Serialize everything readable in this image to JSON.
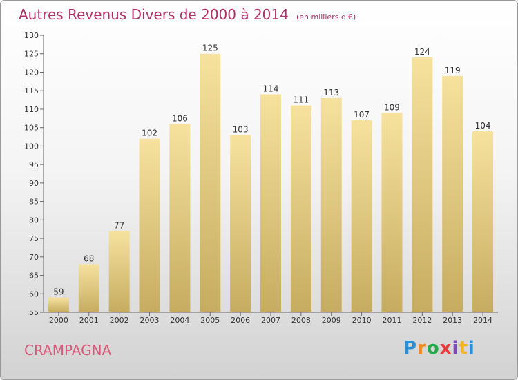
{
  "title": "Autres Revenus Divers de 2000 à 2014",
  "unit": "(en milliers d'€)",
  "commune": "CRAMPAGNA",
  "logo": {
    "letters": [
      "P",
      "r",
      "o",
      "x",
      "i",
      "t",
      "i"
    ],
    "colors": [
      "#2a8fd4",
      "#f08a1c",
      "#2aa94a",
      "#e83a3a",
      "#7a4bb0",
      "#f0b61c",
      "#2a8fd4"
    ]
  },
  "colors": {
    "title": "#b0306a",
    "commune": "#d85a7a",
    "bar_light": "#f6e29e",
    "bar_dark": "#c6ac60"
  },
  "chart_data": {
    "type": "bar",
    "categories": [
      "2000",
      "2001",
      "2002",
      "2003",
      "2004",
      "2005",
      "2006",
      "2007",
      "2008",
      "2009",
      "2010",
      "2011",
      "2012",
      "2013",
      "2014"
    ],
    "values": [
      59,
      68,
      77,
      102,
      106,
      125,
      103,
      114,
      111,
      113,
      107,
      109,
      124,
      119,
      104
    ],
    "ylim": [
      55,
      130
    ],
    "yticks": [
      55,
      60,
      65,
      70,
      75,
      80,
      85,
      90,
      95,
      100,
      105,
      110,
      115,
      120,
      125,
      130
    ],
    "grid": false,
    "legend": "none"
  }
}
